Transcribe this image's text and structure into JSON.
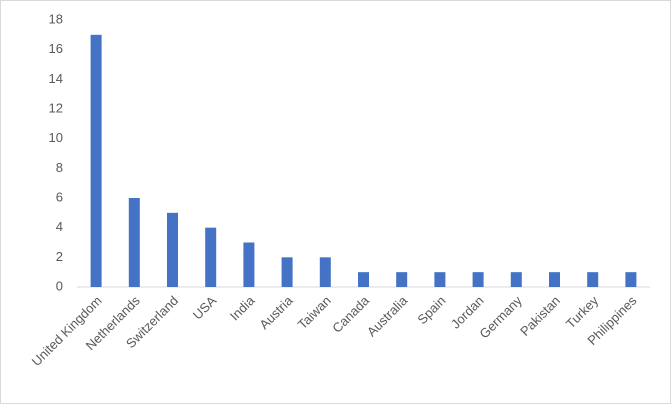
{
  "chart_data": {
    "type": "bar",
    "categories": [
      "United Kingdom",
      "Netherlands",
      "Switzerland",
      "USA",
      "India",
      "Austria",
      "Taiwan",
      "Canada",
      "Australia",
      "Spain",
      "Jordan",
      "Germany",
      "Pakistan",
      "Turkey",
      "Philippines"
    ],
    "values": [
      17,
      6,
      5,
      4,
      3,
      2,
      2,
      1,
      1,
      1,
      1,
      1,
      1,
      1,
      1
    ],
    "color": "#4472c4",
    "ylim": [
      0,
      18
    ],
    "yticks": [
      0,
      2,
      4,
      6,
      8,
      10,
      12,
      14,
      16,
      18
    ],
    "grid": false
  }
}
